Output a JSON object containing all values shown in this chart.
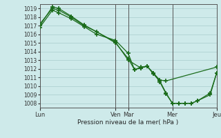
{
  "xlabel": "Pression niveau de la mer( hPa )",
  "bg_color": "#ceeaea",
  "grid_color_major": "#a8cccc",
  "grid_color_minor": "#c4e4e4",
  "line_color": "#1a6b1a",
  "ylim": [
    1007.5,
    1019.5
  ],
  "yticks": [
    1008,
    1009,
    1010,
    1011,
    1012,
    1013,
    1014,
    1015,
    1016,
    1017,
    1018,
    1019
  ],
  "xlim": [
    0,
    168
  ],
  "day_labels": [
    "Lun",
    "Ven",
    "Mar",
    "Mer",
    "Jeu"
  ],
  "day_positions": [
    0,
    72,
    84,
    126,
    168
  ],
  "vline_positions": [
    0,
    72,
    84,
    126,
    168
  ],
  "line1_x": [
    0,
    12,
    18,
    30,
    42,
    72,
    84,
    96,
    102,
    108,
    114,
    120,
    168
  ],
  "line1_y": [
    1017.0,
    1019.2,
    1019.0,
    1018.1,
    1017.1,
    1015.1,
    1013.0,
    1012.1,
    1012.3,
    1011.5,
    1010.7,
    1010.6,
    1012.2
  ],
  "line2_x": [
    0,
    12,
    18,
    30,
    42,
    54,
    72,
    84,
    90,
    96,
    102,
    108,
    114,
    120,
    126,
    132,
    138,
    144,
    150,
    162,
    168
  ],
  "line2_y": [
    1017.2,
    1019.0,
    1018.8,
    1018.0,
    1017.0,
    1016.3,
    1015.0,
    1013.2,
    1011.9,
    1012.2,
    1012.3,
    1011.4,
    1010.6,
    1009.2,
    1008.0,
    1008.0,
    1008.0,
    1008.0,
    1008.3,
    1009.2,
    1011.5
  ],
  "line3_x": [
    0,
    12,
    18,
    30,
    42,
    54,
    72,
    84,
    90,
    96,
    102,
    108,
    114,
    120,
    126,
    132,
    138,
    144,
    150,
    162,
    168
  ],
  "line3_y": [
    1016.8,
    1018.8,
    1018.5,
    1017.8,
    1016.9,
    1016.0,
    1015.3,
    1013.8,
    1011.9,
    1012.1,
    1012.3,
    1011.5,
    1010.5,
    1009.1,
    1008.0,
    1008.0,
    1008.0,
    1008.0,
    1008.3,
    1009.0,
    1011.5
  ]
}
